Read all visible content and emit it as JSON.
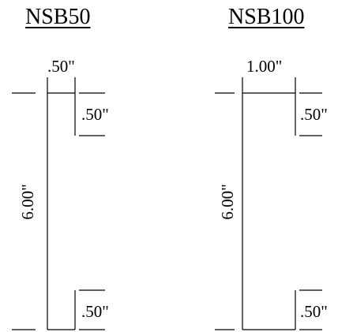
{
  "diagrams": [
    {
      "title": "NSB50",
      "dimensions": {
        "width": ".50\"",
        "top_flange": ".50\"",
        "height": "6.00\"",
        "bottom_flange": ".50\""
      }
    },
    {
      "title": "NSB100",
      "dimensions": {
        "width": "1.00\"",
        "top_flange": ".50\"",
        "height": "6.00\"",
        "bottom_flange": ".50\""
      }
    }
  ],
  "colors": {
    "line": "#000000",
    "background": "#ffffff"
  }
}
